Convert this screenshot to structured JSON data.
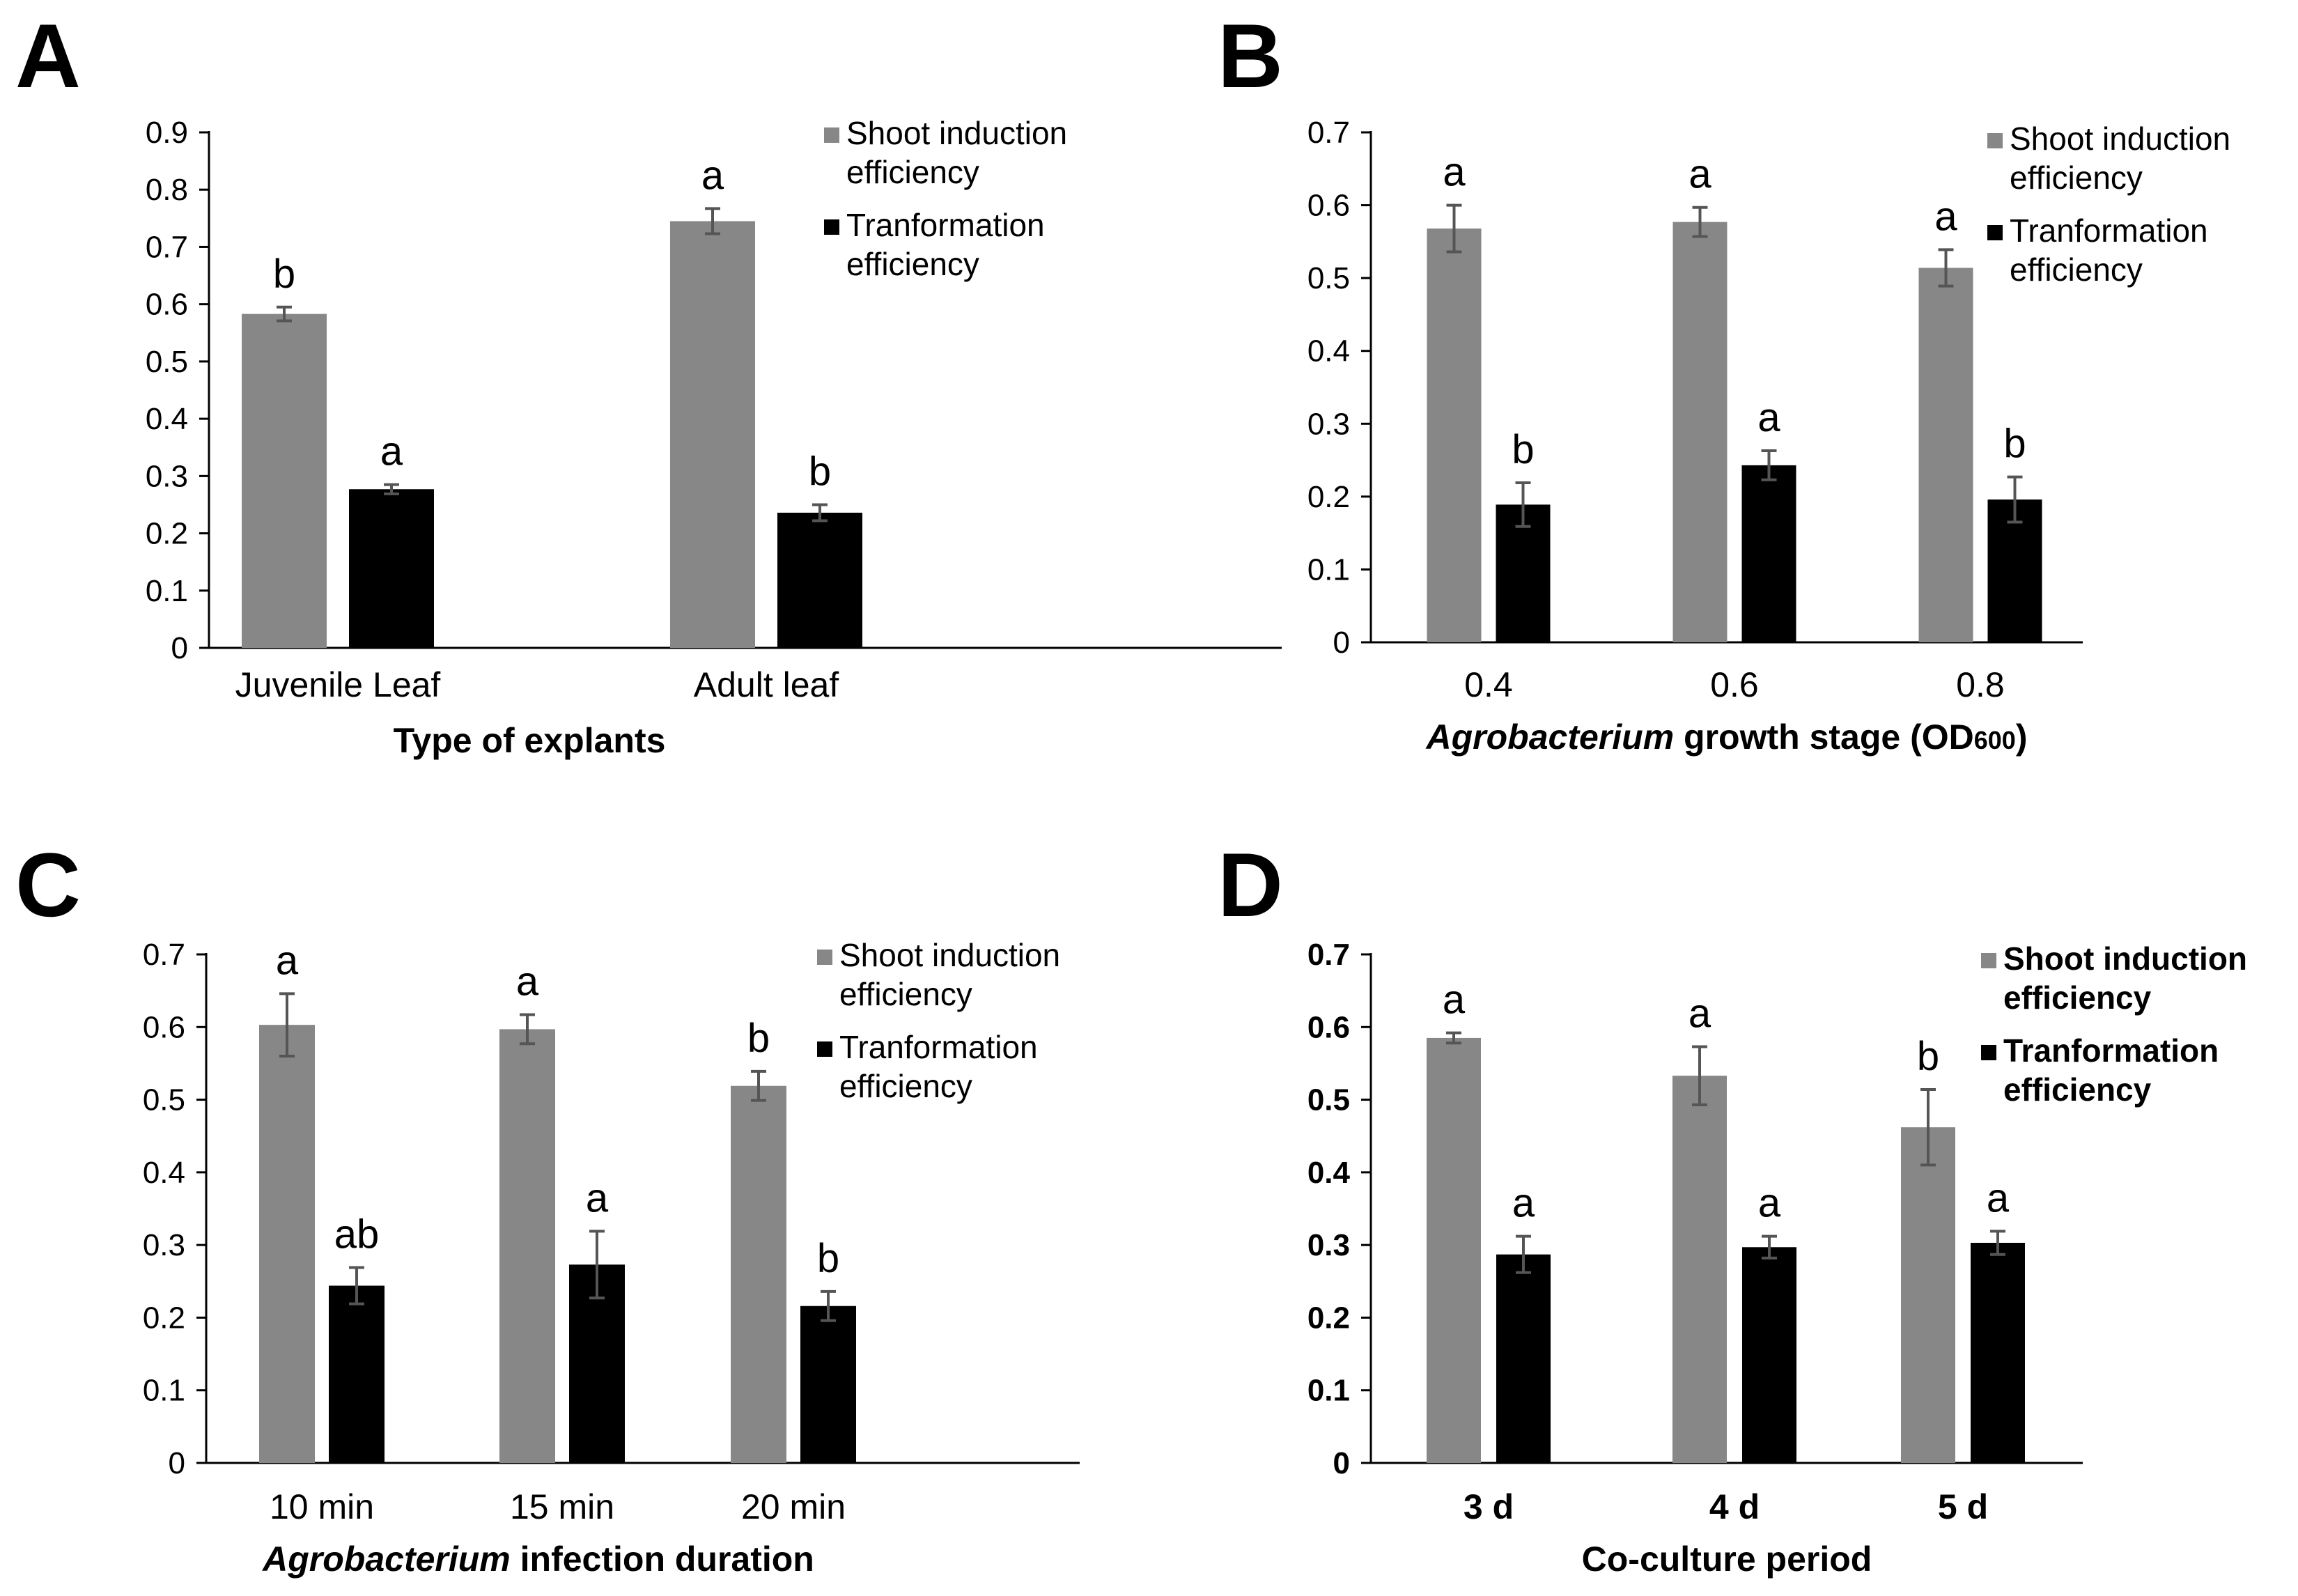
{
  "figure": {
    "colors": {
      "shoot": "#878787",
      "transformation": "#000000",
      "error": "#555555",
      "axis": "#000000"
    }
  },
  "chart_data": [
    {
      "panel": "A",
      "type": "bar",
      "categories": [
        "Juvenile Leaf",
        "Adult leaf"
      ],
      "xlabel": "Type of explants",
      "xlabel_parts": [],
      "ylim": [
        0,
        0.9
      ],
      "yticks": [
        "0",
        "0.1",
        "0.2",
        "0.3",
        "0.4",
        "0.5",
        "0.6",
        "0.7",
        "0.8",
        "0.9"
      ],
      "legend": [
        "Shoot induction\nefficiency",
        "Tranformation\nefficiency"
      ],
      "legend_bold": false,
      "tick_bold": false,
      "series": [
        {
          "name": "Shoot induction efficiency",
          "values": [
            0.583,
            0.745
          ],
          "errors": [
            0.012,
            0.022
          ],
          "letters": [
            "b",
            "a"
          ]
        },
        {
          "name": "Tranformation efficiency",
          "values": [
            0.277,
            0.236
          ],
          "errors": [
            0.008,
            0.014
          ],
          "letters": [
            "a",
            "b"
          ]
        }
      ]
    },
    {
      "panel": "B",
      "type": "bar",
      "categories": [
        "0.4",
        "0.6",
        "0.8"
      ],
      "xlabel": "",
      "xlabel_parts": [
        {
          "text": "Agrobacterium",
          "style": "italic"
        },
        {
          "text": " growth stage (OD",
          "style": "normal"
        },
        {
          "text": "600",
          "style": "sub"
        },
        {
          "text": ")",
          "style": "normal"
        }
      ],
      "ylim": [
        0,
        0.7
      ],
      "yticks": [
        "0",
        "0.1",
        "0.2",
        "0.3",
        "0.4",
        "0.5",
        "0.6",
        "0.7"
      ],
      "legend": [
        "Shoot induction\nefficiency",
        "Tranformation\nefficiency"
      ],
      "legend_bold": false,
      "tick_bold": false,
      "series": [
        {
          "name": "Shoot induction efficiency",
          "values": [
            0.568,
            0.577,
            0.514
          ],
          "errors": [
            0.032,
            0.02,
            0.025
          ],
          "letters": [
            "a",
            "a",
            "a"
          ]
        },
        {
          "name": "Tranformation efficiency",
          "values": [
            0.189,
            0.243,
            0.196
          ],
          "errors": [
            0.03,
            0.02,
            0.031
          ],
          "letters": [
            "b",
            "a",
            "b"
          ]
        }
      ]
    },
    {
      "panel": "C",
      "type": "bar",
      "categories": [
        "10 min",
        "15 min",
        "20 min"
      ],
      "xlabel": "",
      "xlabel_parts": [
        {
          "text": "Agrobacterium",
          "style": "italic"
        },
        {
          "text": " infection duration",
          "style": "normal"
        }
      ],
      "ylim": [
        0,
        0.7
      ],
      "yticks": [
        "0",
        "0.1",
        "0.2",
        "0.3",
        "0.4",
        "0.5",
        "0.6",
        "0.7"
      ],
      "legend": [
        "Shoot induction\nefficiency",
        "Tranformation\nefficiency"
      ],
      "legend_bold": false,
      "tick_bold": false,
      "series": [
        {
          "name": "Shoot induction efficiency",
          "values": [
            0.603,
            0.597,
            0.519
          ],
          "errors": [
            0.043,
            0.02,
            0.02
          ],
          "letters": [
            "a",
            "a",
            "b"
          ]
        },
        {
          "name": "Tranformation efficiency",
          "values": [
            0.244,
            0.273,
            0.216
          ],
          "errors": [
            0.025,
            0.046,
            0.02
          ],
          "letters": [
            "ab",
            "a",
            "b"
          ]
        }
      ]
    },
    {
      "panel": "D",
      "type": "bar",
      "categories": [
        "3 d",
        "4 d",
        "5 d"
      ],
      "xlabel": "Co-culture period",
      "xlabel_parts": [],
      "ylim": [
        0,
        0.7
      ],
      "yticks": [
        "0",
        "0.1",
        "0.2",
        "0.3",
        "0.4",
        "0.5",
        "0.6",
        "0.7"
      ],
      "legend": [
        "Shoot induction\nefficiency",
        "Tranformation\nefficiency"
      ],
      "legend_bold": true,
      "tick_bold": true,
      "series": [
        {
          "name": "Shoot induction efficiency",
          "values": [
            0.585,
            0.533,
            0.462
          ],
          "errors": [
            0.007,
            0.04,
            0.052
          ],
          "letters": [
            "a",
            "a",
            "b"
          ]
        },
        {
          "name": "Tranformation efficiency",
          "values": [
            0.287,
            0.297,
            0.303
          ],
          "errors": [
            0.025,
            0.015,
            0.016
          ],
          "letters": [
            "a",
            "a",
            "a"
          ]
        }
      ]
    }
  ]
}
